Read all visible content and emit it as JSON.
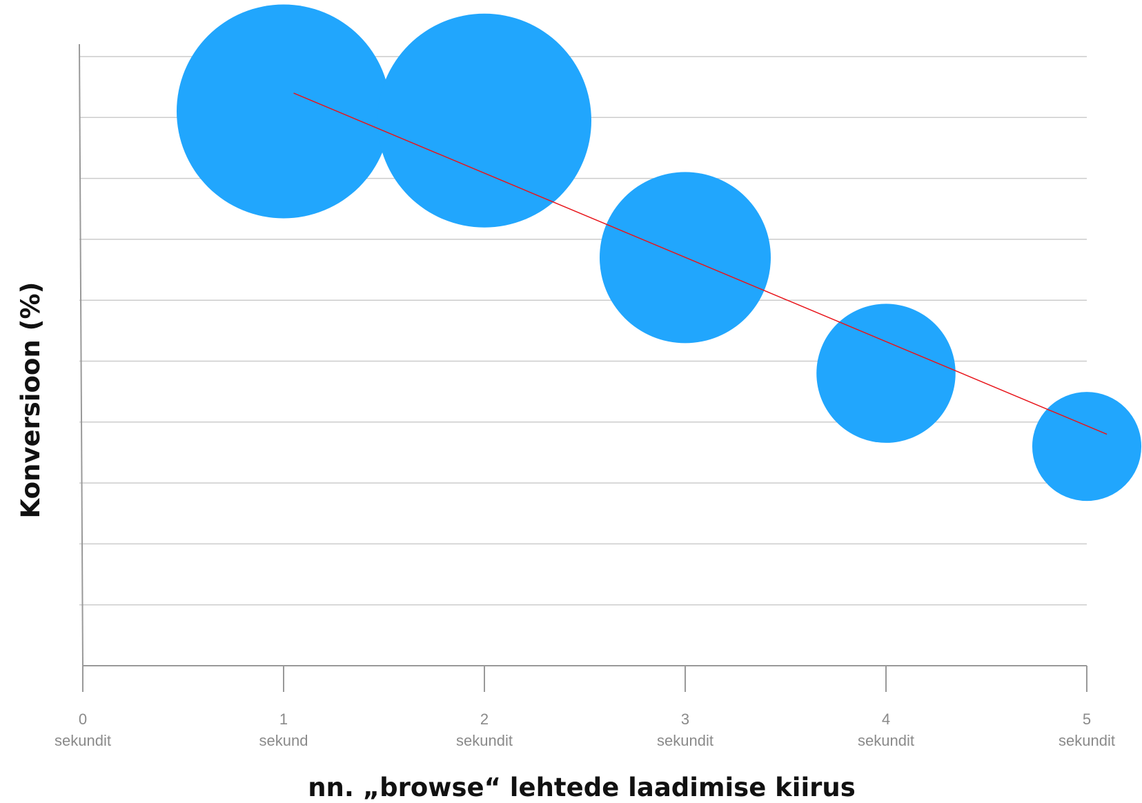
{
  "chart_data": {
    "type": "bubble",
    "title": "",
    "xlabel": "nn. „browse“ lehtede laadimise kiirus",
    "ylabel": "Konversioon (%)",
    "x_ticks": [
      {
        "value": 0,
        "label": "0",
        "unit": "sekundit"
      },
      {
        "value": 1,
        "label": "1",
        "unit": "sekund"
      },
      {
        "value": 2,
        "label": "2",
        "unit": "sekundit"
      },
      {
        "value": 3,
        "label": "3",
        "unit": "sekundit"
      },
      {
        "value": 4,
        "label": "4",
        "unit": "sekundit"
      },
      {
        "value": 5,
        "label": "5",
        "unit": "sekundit"
      }
    ],
    "xlim": [
      0,
      5
    ],
    "ylim": [
      0,
      10
    ],
    "grid": true,
    "y_tick_labels_shown": false,
    "points": [
      {
        "x": 1.0,
        "y": 9.1,
        "size": 1.0
      },
      {
        "x": 2.0,
        "y": 8.95,
        "size": 1.0
      },
      {
        "x": 3.0,
        "y": 6.7,
        "size": 0.8
      },
      {
        "x": 4.0,
        "y": 4.8,
        "size": 0.65
      },
      {
        "x": 5.0,
        "y": 3.6,
        "size": 0.51
      }
    ],
    "trendline": {
      "x": [
        1.05,
        5.1
      ],
      "y": [
        9.4,
        3.8
      ]
    },
    "colors": {
      "bubble": "#21a6fd",
      "trendline": "#e8151b",
      "grid": "#cccccc",
      "axis": "#999999",
      "tick_text": "#8a8a8a",
      "title_text": "#111111"
    }
  }
}
